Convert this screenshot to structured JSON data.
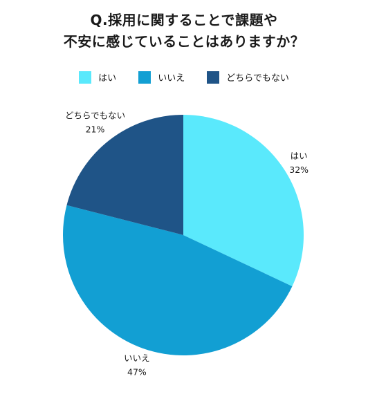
{
  "title": {
    "line1": "Q.採用に関することで課題や",
    "line2": "不安に感じていることはありますか？"
  },
  "chart_data": {
    "type": "pie",
    "categories": [
      "はい",
      "いいえ",
      "どちらでもない"
    ],
    "values": [
      32,
      47,
      21
    ],
    "value_labels": [
      "32%",
      "47%",
      "21%"
    ],
    "colors": [
      "#5ae9fc",
      "#129fd3",
      "#1f5487"
    ],
    "start_angle": "12 o'clock",
    "direction": "clockwise",
    "legend": {
      "placement": "top",
      "items": [
        "はい",
        "いいえ",
        "どちらでもない"
      ]
    }
  }
}
